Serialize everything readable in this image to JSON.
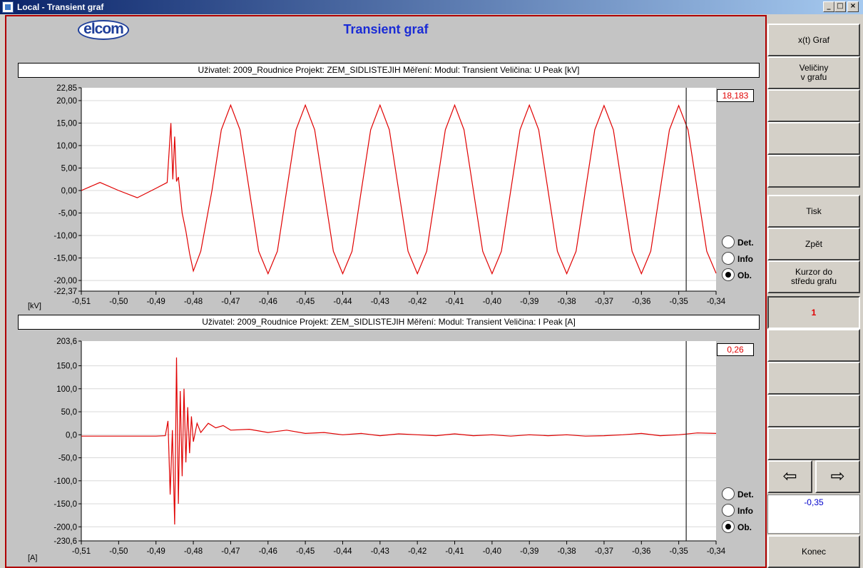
{
  "window": {
    "title": "Local - Transient graf",
    "caption_buttons": [
      "_",
      "□",
      "×"
    ]
  },
  "logo_text": "elcom",
  "page_title": "Transient graf",
  "charts": [
    {
      "info": "Uživatel: 2009_Roudnice   Projekt: ZEM_SIDLISTEJIH   Měření:    Modul: Transient   Veličina: U Peak [kV]",
      "unit": "[kV]",
      "cursor_value": "18,183",
      "cursor_x": -0.348,
      "radio": [
        {
          "label": "Det.",
          "checked": false
        },
        {
          "label": "Info",
          "checked": false
        },
        {
          "label": "Ob.",
          "checked": true
        }
      ]
    },
    {
      "info": "Uživatel: 2009_Roudnice   Projekt: ZEM_SIDLISTEJIH   Měření:    Modul: Transient   Veličina: I Peak [A]",
      "unit": "[A]",
      "cursor_value": "0,26",
      "cursor_x": -0.348,
      "radio": [
        {
          "label": "Det.",
          "checked": false
        },
        {
          "label": "Info",
          "checked": false
        },
        {
          "label": "Ob.",
          "checked": true
        }
      ]
    }
  ],
  "chart_data": [
    {
      "type": "line",
      "color": "#e00000",
      "xlim": [
        -0.51,
        -0.34
      ],
      "ylim": [
        -22.37,
        22.85
      ],
      "x_ticks": [
        "-0,51",
        "-0,50",
        "-0,49",
        "-0,48",
        "-0,47",
        "-0,46",
        "-0,45",
        "-0,44",
        "-0,43",
        "-0,42",
        "-0,41",
        "-0,40",
        "-0,39",
        "-0,38",
        "-0,37",
        "-0,36",
        "-0,35",
        "-0,34"
      ],
      "y_ticks": [
        {
          "v": 22.85,
          "label": "22,85"
        },
        {
          "v": 20,
          "label": "20,00"
        },
        {
          "v": 15,
          "label": "15,00"
        },
        {
          "v": 10,
          "label": "10,00"
        },
        {
          "v": 5,
          "label": "5,00"
        },
        {
          "v": 0,
          "label": "0,00"
        },
        {
          "v": -5,
          "label": "-5,00"
        },
        {
          "v": -10,
          "label": "-10,00"
        },
        {
          "v": -15,
          "label": "-15,00"
        },
        {
          "v": -20,
          "label": "-20,00"
        },
        {
          "v": -22.37,
          "label": "-22,37"
        }
      ],
      "x": [
        -0.51,
        -0.505,
        -0.5,
        -0.495,
        -0.49,
        -0.487,
        -0.486,
        -0.4855,
        -0.485,
        -0.4845,
        -0.484,
        -0.4835,
        -0.483,
        -0.482,
        -0.481,
        -0.48,
        -0.478,
        -0.475,
        -0.4725,
        -0.47,
        -0.4675,
        -0.465,
        -0.4625,
        -0.46,
        -0.4575,
        -0.455,
        -0.4525,
        -0.45,
        -0.4475,
        -0.445,
        -0.4425,
        -0.44,
        -0.4375,
        -0.435,
        -0.4325,
        -0.43,
        -0.4275,
        -0.425,
        -0.4225,
        -0.42,
        -0.4175,
        -0.415,
        -0.4125,
        -0.41,
        -0.4075,
        -0.405,
        -0.4025,
        -0.4,
        -0.3975,
        -0.395,
        -0.3925,
        -0.39,
        -0.3875,
        -0.385,
        -0.3825,
        -0.38,
        -0.3775,
        -0.375,
        -0.3725,
        -0.37,
        -0.3675,
        -0.365,
        -0.3625,
        -0.36,
        -0.3575,
        -0.355,
        -0.3525,
        -0.35,
        -0.3475,
        -0.345,
        -0.3425,
        -0.34
      ],
      "y": [
        0.0,
        1.8,
        0.0,
        -1.6,
        0.5,
        1.8,
        15.0,
        2.5,
        12.0,
        2.0,
        3.0,
        -1.0,
        -5.0,
        -9.0,
        -14.0,
        -17.9,
        -13.5,
        0.0,
        13.5,
        19.0,
        13.5,
        0.0,
        -13.5,
        -18.5,
        -13.5,
        0.0,
        13.5,
        19.0,
        13.5,
        0.0,
        -13.5,
        -18.5,
        -13.5,
        0.0,
        13.5,
        19.0,
        13.5,
        0.0,
        -13.5,
        -18.5,
        -13.5,
        0.0,
        13.5,
        19.0,
        13.5,
        0.0,
        -13.5,
        -18.5,
        -13.5,
        0.0,
        13.5,
        19.0,
        13.5,
        0.0,
        -13.5,
        -18.5,
        -13.5,
        0.0,
        13.5,
        18.9,
        13.5,
        0.0,
        -13.5,
        -18.5,
        -13.5,
        0.0,
        13.5,
        18.9,
        13.5,
        0.0,
        -13.5,
        -18.4
      ]
    },
    {
      "type": "line",
      "color": "#e00000",
      "xlim": [
        -0.51,
        -0.34
      ],
      "ylim": [
        -230.6,
        203.6
      ],
      "x_ticks": [
        "-0,51",
        "-0,50",
        "-0,49",
        "-0,48",
        "-0,47",
        "-0,46",
        "-0,45",
        "-0,44",
        "-0,43",
        "-0,42",
        "-0,41",
        "-0,40",
        "-0,39",
        "-0,38",
        "-0,37",
        "-0,36",
        "-0,35",
        "-0,34"
      ],
      "y_ticks": [
        {
          "v": 203.6,
          "label": "203,6"
        },
        {
          "v": 150,
          "label": "150,0"
        },
        {
          "v": 100,
          "label": "100,0"
        },
        {
          "v": 50,
          "label": "50,0"
        },
        {
          "v": 0,
          "label": "0,0"
        },
        {
          "v": -50,
          "label": "-50,0"
        },
        {
          "v": -100,
          "label": "-100,0"
        },
        {
          "v": -150,
          "label": "-150,0"
        },
        {
          "v": -200,
          "label": "-200,0"
        },
        {
          "v": -230.6,
          "label": "-230,6"
        }
      ],
      "x": [
        -0.51,
        -0.5,
        -0.49,
        -0.4875,
        -0.4868,
        -0.4862,
        -0.4856,
        -0.485,
        -0.4845,
        -0.484,
        -0.4835,
        -0.483,
        -0.4825,
        -0.482,
        -0.4815,
        -0.481,
        -0.4805,
        -0.48,
        -0.479,
        -0.478,
        -0.476,
        -0.474,
        -0.472,
        -0.47,
        -0.465,
        -0.46,
        -0.455,
        -0.45,
        -0.445,
        -0.44,
        -0.435,
        -0.43,
        -0.425,
        -0.42,
        -0.415,
        -0.41,
        -0.405,
        -0.4,
        -0.395,
        -0.39,
        -0.385,
        -0.38,
        -0.375,
        -0.37,
        -0.365,
        -0.36,
        -0.355,
        -0.35,
        -0.345,
        -0.34
      ],
      "y": [
        -3,
        -3,
        -3,
        -2,
        30,
        -130,
        10,
        -195,
        168,
        -150,
        95,
        -90,
        100,
        -60,
        60,
        -40,
        40,
        -15,
        25,
        5,
        25,
        15,
        20,
        10,
        12,
        5,
        10,
        3,
        5,
        0,
        3,
        -2,
        2,
        0,
        -2,
        2,
        -2,
        0,
        -3,
        0,
        -2,
        0,
        -3,
        -2,
        0,
        3,
        -2,
        0,
        4,
        3
      ]
    }
  ],
  "side_buttons": [
    {
      "label": "x(t) Graf"
    },
    {
      "label": "Veličiny\nv grafu"
    },
    {
      "label": ""
    },
    {
      "label": ""
    },
    {
      "label": ""
    },
    {
      "label": "Tisk"
    },
    {
      "label": "Zpět"
    },
    {
      "label": "Kurzor do\nstředu grafu"
    },
    {
      "label": "1"
    },
    {
      "label": ""
    },
    {
      "label": ""
    },
    {
      "label": ""
    },
    {
      "label": ""
    }
  ],
  "arrows": {
    "left": "⇦",
    "right": "⇨"
  },
  "cursor_position": "-0,35",
  "end_button": "Konec"
}
